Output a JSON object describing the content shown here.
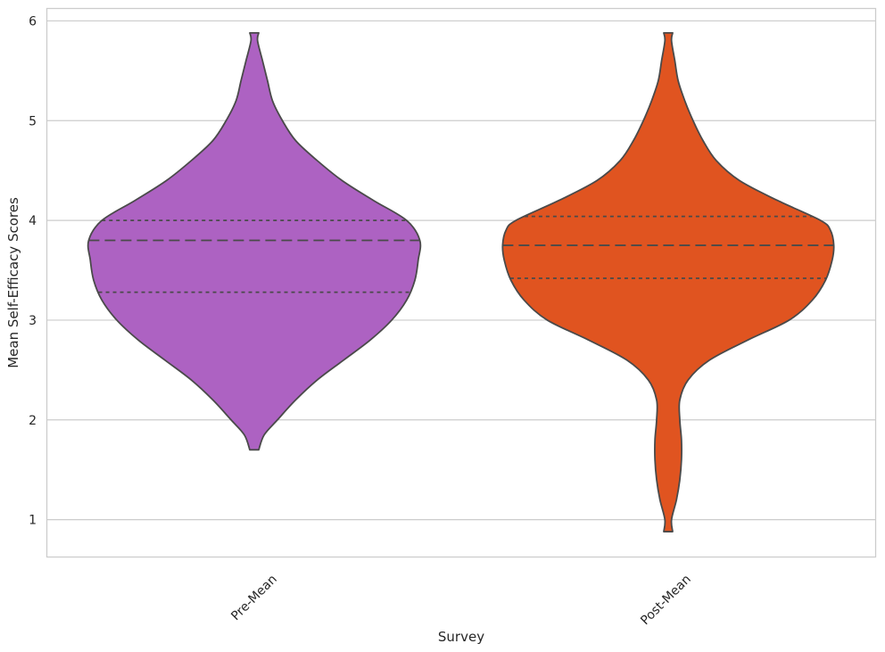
{
  "chart_data": {
    "type": "violin",
    "xlabel": "Survey",
    "ylabel": "Mean Self-Efficacy Scores",
    "categories": [
      "Pre-Mean",
      "Post-Mean"
    ],
    "ylim": [
      0.63,
      6.12
    ],
    "yticks": [
      "1",
      "2",
      "3",
      "4",
      "5",
      "6"
    ],
    "grid": true,
    "series": [
      {
        "category": "Pre-Mean",
        "color": "#AD62C2",
        "min": 1.7,
        "max": 5.88,
        "q1": 3.28,
        "median": 3.8,
        "q3": 4.0,
        "density": [
          [
            1.7,
            0.0
          ],
          [
            1.85,
            0.06
          ],
          [
            2.0,
            0.14
          ],
          [
            2.2,
            0.25
          ],
          [
            2.4,
            0.38
          ],
          [
            2.6,
            0.54
          ],
          [
            2.8,
            0.7
          ],
          [
            3.0,
            0.83
          ],
          [
            3.2,
            0.92
          ],
          [
            3.4,
            0.97
          ],
          [
            3.6,
            0.99
          ],
          [
            3.8,
            1.0
          ],
          [
            4.0,
            0.92
          ],
          [
            4.2,
            0.72
          ],
          [
            4.4,
            0.53
          ],
          [
            4.6,
            0.38
          ],
          [
            4.8,
            0.25
          ],
          [
            5.0,
            0.17
          ],
          [
            5.2,
            0.11
          ],
          [
            5.4,
            0.08
          ],
          [
            5.6,
            0.05
          ],
          [
            5.8,
            0.02
          ],
          [
            5.88,
            0.0
          ]
        ]
      },
      {
        "category": "Post-Mean",
        "color": "#E05420",
        "min": 0.88,
        "max": 5.88,
        "q1": 3.42,
        "median": 3.75,
        "q3": 4.04,
        "density": [
          [
            0.88,
            0.0
          ],
          [
            1.0,
            0.02
          ],
          [
            1.2,
            0.05
          ],
          [
            1.4,
            0.07
          ],
          [
            1.6,
            0.08
          ],
          [
            1.8,
            0.08
          ],
          [
            2.0,
            0.07
          ],
          [
            2.2,
            0.07
          ],
          [
            2.4,
            0.12
          ],
          [
            2.6,
            0.25
          ],
          [
            2.8,
            0.48
          ],
          [
            3.0,
            0.73
          ],
          [
            3.2,
            0.87
          ],
          [
            3.4,
            0.95
          ],
          [
            3.6,
            0.99
          ],
          [
            3.75,
            1.0
          ],
          [
            3.9,
            0.98
          ],
          [
            4.0,
            0.92
          ],
          [
            4.2,
            0.66
          ],
          [
            4.4,
            0.43
          ],
          [
            4.6,
            0.29
          ],
          [
            4.8,
            0.21
          ],
          [
            5.0,
            0.15
          ],
          [
            5.2,
            0.1
          ],
          [
            5.4,
            0.06
          ],
          [
            5.6,
            0.04
          ],
          [
            5.8,
            0.02
          ],
          [
            5.88,
            0.0
          ]
        ]
      }
    ]
  }
}
